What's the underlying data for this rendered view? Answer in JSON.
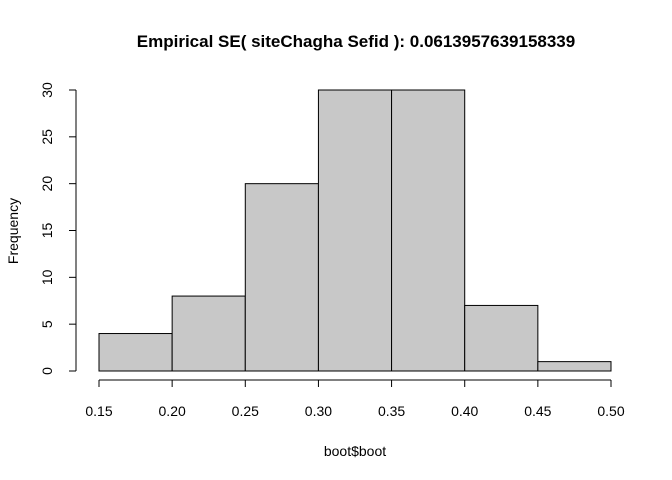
{
  "chart_data": {
    "type": "bar",
    "title": "Empirical SE( siteChagha Sefid ):  0.0613957639158339",
    "xlabel": "boot$boot",
    "ylabel": "Frequency",
    "bins": [
      {
        "from": 0.15,
        "to": 0.2,
        "count": 4
      },
      {
        "from": 0.2,
        "to": 0.25,
        "count": 8
      },
      {
        "from": 0.25,
        "to": 0.3,
        "count": 20
      },
      {
        "from": 0.3,
        "to": 0.35,
        "count": 30
      },
      {
        "from": 0.35,
        "to": 0.4,
        "count": 30
      },
      {
        "from": 0.4,
        "to": 0.45,
        "count": 7
      },
      {
        "from": 0.45,
        "to": 0.5,
        "count": 1
      }
    ],
    "x_ticks": [
      "0.15",
      "0.20",
      "0.25",
      "0.30",
      "0.35",
      "0.40",
      "0.45",
      "0.50"
    ],
    "y_ticks": [
      "0",
      "5",
      "10",
      "15",
      "20",
      "25",
      "30"
    ],
    "xlim": [
      0.15,
      0.5
    ],
    "ylim": [
      0,
      30
    ],
    "grid": false,
    "bar_color": "#c8c8c8",
    "border_color": "#000000"
  }
}
